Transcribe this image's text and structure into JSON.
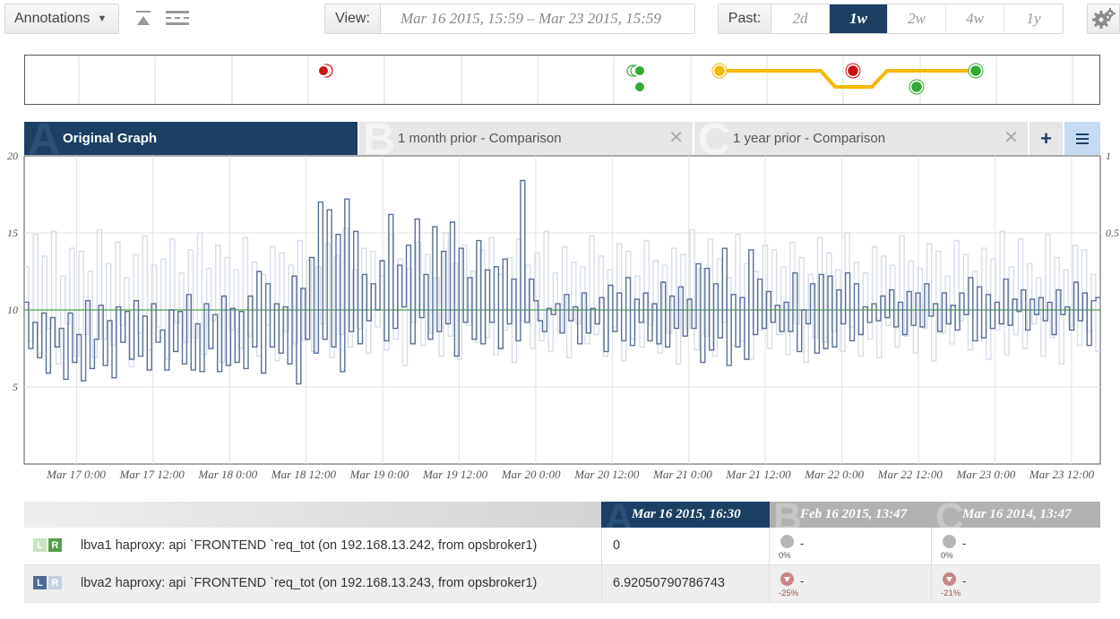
{
  "toolbar": {
    "annotations_label": "Annotations",
    "view_label": "View:",
    "view_range": "Mar 16 2015, 15:59  –  Mar 23 2015, 15:59",
    "past_label": "Past:",
    "past_options": [
      "2d",
      "1w",
      "2w",
      "4w",
      "1y"
    ],
    "past_selected": "1w",
    "icons": [
      "collapse-top-icon",
      "grid-lines-icon",
      "gear-icon"
    ]
  },
  "timeline": {
    "line_color": "#f5b800",
    "event_colors": {
      "critical": "#cc1111",
      "ok": "#33aa33",
      "warning": "#f5b800"
    }
  },
  "tabs": [
    {
      "letter": "A",
      "label": "Original Graph",
      "active": true
    },
    {
      "letter": "B",
      "label": "1 month prior - Comparison",
      "active": false
    },
    {
      "letter": "C",
      "label": "1 year prior - Comparison",
      "active": false
    }
  ],
  "tab_actions": {
    "add": "+",
    "menu_icon": "menu-icon"
  },
  "chart_data": {
    "type": "line",
    "title": "",
    "xlabel": "",
    "ylabel": "",
    "ylim": [
      0,
      20
    ],
    "y_ticks": [
      "20",
      "15",
      "10",
      "5"
    ],
    "y2_ticks": [
      "1",
      "0.5"
    ],
    "x_ticks": [
      "Mar 17 0:00",
      "Mar 17 12:00",
      "Mar 18 0:00",
      "Mar 18 12:00",
      "Mar 19 0:00",
      "Mar 19 12:00",
      "Mar 20 0:00",
      "Mar 20 12:00",
      "Mar 21 0:00",
      "Mar 21 12:00",
      "Mar 22 0:00",
      "Mar 22 12:00",
      "Mar 23 0:00",
      "Mar 23 12:00"
    ],
    "grid": true,
    "colors": {
      "primary": "#5a6f99",
      "comparison": "#d7dde8",
      "baseline": "#4ca34c"
    },
    "baseline_value": 10,
    "series": [
      {
        "values": [
          10.5,
          7.5,
          9.2,
          6.9,
          9.8,
          5.9,
          9.5,
          7.6,
          8.8,
          5.5,
          9.8,
          6.6,
          8.4,
          5.4,
          10.6,
          6.2,
          8.1,
          10.3,
          6.4,
          9.3,
          5.6,
          10.2,
          7.9,
          9.9,
          6.8,
          10.6,
          7.0,
          9.6,
          6.1,
          10.4,
          7.9,
          8.7,
          6.1,
          10.0,
          7.3,
          9.9,
          6.5,
          11.0,
          6.1,
          9.1,
          6.0,
          10.4,
          7.5,
          9.7,
          6.0,
          10.9,
          6.4,
          10.1,
          6.6,
          9.9,
          6.2,
          10.9,
          7.6,
          12.5,
          5.9,
          11.7,
          7.6,
          10.4,
          7.2,
          10.2,
          6.5,
          12.2,
          5.2,
          11.4,
          8.1,
          13.4,
          7.2,
          17.0,
          8.1,
          16.5,
          7.6,
          14.9,
          6.0,
          17.2,
          8.6,
          15.1,
          7.8,
          12.3,
          9.3,
          11.7,
          10.0,
          13.2,
          8.0,
          16.2,
          8.8,
          12.9,
          10.2,
          14.2,
          7.8,
          15.9,
          9.5,
          12.3,
          8.1,
          15.4,
          8.6,
          13.8,
          9.1,
          15.7,
          7.0,
          14.0,
          9.2,
          12.1,
          8.1,
          14.5,
          7.8,
          12.6,
          9.2,
          12.8,
          7.5,
          13.3,
          9.1,
          12.0,
          8.0,
          18.4,
          9.2,
          12.0,
          10.6,
          9.3,
          8.6,
          10.1,
          9.7,
          10.4,
          8.5,
          11.0,
          9.3,
          10.2,
          7.8,
          11.1,
          8.5,
          10.1,
          9.1,
          10.8,
          7.3,
          11.6,
          8.6,
          11.1,
          8.0,
          12.1,
          7.7,
          10.7,
          9.2,
          11.1,
          8.0,
          10.4,
          7.8,
          11.8,
          7.6,
          10.9,
          8.8,
          11.5,
          8.3,
          10.7,
          8.8,
          13.0,
          6.6,
          12.7,
          7.4,
          11.7,
          8.2,
          14.0,
          6.4,
          11.0,
          7.6,
          10.8,
          6.8,
          13.9,
          8.4,
          12.0,
          8.8,
          11.2,
          9.2,
          10.3,
          8.6,
          10.5,
          8.6,
          12.4,
          7.3,
          10.0,
          9.1,
          11.7,
          7.2,
          12.3,
          7.5,
          12.2,
          7.6,
          11.3,
          9.1,
          12.4,
          8.0,
          11.7,
          8.4,
          10.2,
          9.2,
          10.4,
          9.3,
          10.9,
          9.5,
          11.3,
          8.9,
          10.5,
          8.4,
          11.2,
          9.0,
          11.1,
          8.9,
          11.7,
          9.6,
          10.4,
          8.6,
          11.1,
          9.1,
          10.3,
          8.7,
          11.1,
          9.7,
          12.1,
          8.0,
          11.5,
          8.2,
          11.0,
          8.8,
          10.5,
          9.1,
          12.0,
          9.0,
          10.7,
          9.9,
          11.3,
          8.7,
          10.7,
          9.7,
          10.8,
          9.3,
          10.5,
          8.4,
          11.3,
          9.7,
          10.2,
          8.7,
          11.8,
          9.3,
          11.1,
          7.7,
          10.6,
          10.8
        ]
      },
      {
        "values": [
          12.8,
          8.0,
          14.9,
          7.2,
          13.5,
          8.8,
          15.1,
          6.5,
          12.2,
          9.1,
          14.0,
          7.0,
          13.8,
          8.4,
          12.5,
          6.9,
          15.2,
          8.1,
          13.0,
          7.7,
          14.4,
          9.0,
          12.1,
          6.3,
          13.6,
          8.5,
          14.8,
          7.4,
          12.9,
          8.9,
          13.3,
          6.8,
          14.6,
          9.2,
          12.4,
          7.9,
          13.9,
          8.2,
          15.0,
          7.1,
          12.7,
          9.3,
          14.2,
          6.6,
          13.4,
          8.7,
          12.6,
          7.5,
          14.7,
          8.3,
          13.1,
          7.0,
          12.3,
          9.0,
          14.1,
          6.7,
          13.7,
          8.6,
          12.9,
          7.8,
          14.5,
          8.0,
          13.2,
          7.3,
          12.8,
          9.1,
          14.3,
          6.9,
          13.5,
          8.4,
          15.3,
          7.6,
          12.6,
          8.8,
          14.0,
          7.2,
          13.8,
          8.9,
          12.2,
          7.4,
          14.9,
          8.1,
          13.3,
          6.4,
          12.7,
          9.2,
          14.4,
          7.7,
          13.6,
          8.5,
          12.1,
          7.0,
          15.0,
          8.3,
          13.0,
          6.8,
          14.2,
          9.0,
          12.5,
          7.9,
          13.9,
          8.2,
          14.7,
          7.1,
          12.3,
          8.7,
          13.4,
          6.6,
          14.6,
          9.3,
          12.9,
          7.5,
          13.7,
          8.0,
          15.1,
          7.3,
          12.4,
          8.6,
          14.1,
          6.9,
          13.1,
          9.1,
          12.8,
          7.8,
          14.8,
          8.4,
          13.5,
          7.0,
          12.6,
          8.9,
          14.3,
          6.7,
          13.8,
          8.1,
          12.2,
          7.6,
          14.5,
          9.0,
          13.2,
          7.2,
          12.9,
          8.5,
          14.0,
          6.5,
          13.6,
          8.8,
          15.2,
          7.4,
          12.7,
          8.3,
          14.6,
          7.0,
          13.3,
          9.2,
          12.1,
          7.7,
          14.9,
          8.0,
          13.0,
          6.8,
          12.5,
          8.7,
          14.2,
          7.5,
          13.9,
          8.4,
          12.8,
          7.1,
          14.4,
          9.1,
          13.4,
          6.6,
          12.3,
          8.2,
          14.7,
          7.9,
          13.7,
          8.6,
          12.6,
          7.3,
          15.0,
          8.9,
          13.1,
          7.0,
          12.4,
          8.1,
          14.1,
          6.9,
          13.5,
          9.0,
          12.9,
          7.6,
          14.8,
          8.3,
          13.2,
          7.2,
          12.7,
          8.8,
          14.3,
          6.7,
          13.8,
          8.5,
          12.2,
          7.8,
          14.5,
          9.3,
          13.6,
          7.4,
          12.5,
          8.0,
          14.0,
          6.8,
          13.3,
          8.7,
          15.1,
          7.1,
          12.8,
          8.4,
          14.6,
          7.5,
          13.0,
          9.1,
          12.1,
          7.0,
          14.9,
          8.2,
          13.4,
          6.5,
          12.6,
          8.9,
          14.2,
          7.7,
          13.9,
          8.6,
          12.3,
          7.3
        ]
      }
    ]
  },
  "legend": {
    "headers": [
      {
        "letter": "A",
        "label": "Mar 16 2015, 16:30"
      },
      {
        "letter": "B",
        "label": "Feb 16 2015, 13:47"
      },
      {
        "letter": "C",
        "label": "Mar 16 2014, 13:47"
      }
    ],
    "rows": [
      {
        "badges": [
          "L",
          "R"
        ],
        "badge_colors": [
          "#c9e4c3",
          "#54a04d"
        ],
        "name": "lbva1 haproxy: api `FRONTEND `req_tot (on 192.168.13.242, from opsbroker1)",
        "value": "0",
        "comparisons": [
          {
            "dot_color": "#b6b6b6",
            "value": "-",
            "pct": "0%"
          },
          {
            "dot_color": "#b6b6b6",
            "value": "-",
            "pct": "0%"
          }
        ]
      },
      {
        "badges": [
          "L",
          "R"
        ],
        "badge_colors": [
          "#4a6b96",
          "#c5d1e0"
        ],
        "name": "lbva2 haproxy: api `FRONTEND `req_tot (on 192.168.13.243, from opsbroker1)",
        "value": "6.92050790786743",
        "comparisons": [
          {
            "dot_color": "#c98686",
            "value": "-",
            "pct": "-25%"
          },
          {
            "dot_color": "#c98686",
            "value": "-",
            "pct": "-21%"
          }
        ]
      }
    ]
  }
}
